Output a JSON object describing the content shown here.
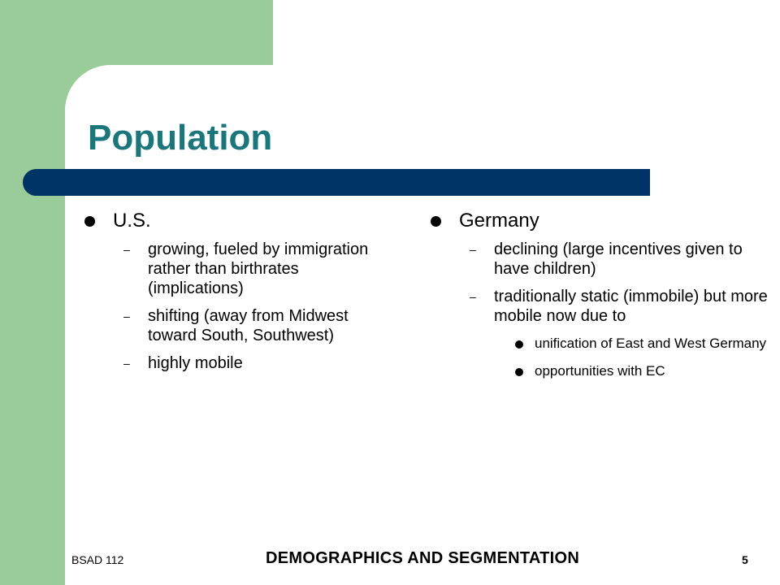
{
  "slide": {
    "title": "Population",
    "left": {
      "heading": "U.S.",
      "items": [
        "growing, fueled by immigration rather than birthrates (implications)",
        "shifting (away from Midwest toward South, Southwest)",
        "highly mobile"
      ]
    },
    "right": {
      "heading": "Germany",
      "items": [
        "declining (large incentives given to have children)",
        "traditionally static (immobile) but more mobile now due to"
      ],
      "subitems": [
        "unification of East and West Germany",
        "opportunities with EC"
      ]
    },
    "footer": {
      "course": "BSAD 112",
      "title": "DEMOGRAPHICS AND SEGMENTATION",
      "page": "5"
    }
  }
}
